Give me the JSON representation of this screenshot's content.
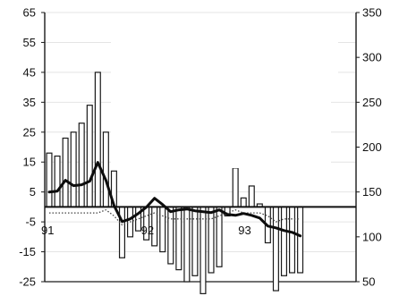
{
  "chart_data": {
    "type": "bar",
    "left_axis": {
      "range": [
        -25,
        65
      ],
      "ticks": [
        "65",
        "55",
        "45",
        "35",
        "25",
        "15",
        "5",
        "-5",
        "-15",
        "-25"
      ]
    },
    "right_axis": {
      "range": [
        50,
        350
      ],
      "ticks": [
        "350",
        "300",
        "250",
        "200",
        "150",
        "100",
        "50"
      ]
    },
    "year_labels": [
      {
        "text": "91",
        "index": 0
      },
      {
        "text": "92",
        "index": 12
      },
      {
        "text": "93",
        "index": 24
      }
    ],
    "series": [
      {
        "type": "bar",
        "axis": "left",
        "values": [
          18,
          17,
          23,
          25,
          28,
          34,
          45,
          25,
          12,
          -17,
          -10,
          -8,
          -11,
          -13,
          -15,
          -19,
          -21,
          -25,
          -23,
          -29,
          -22,
          -20,
          -3,
          13,
          3,
          7,
          1,
          -12,
          -28,
          -23,
          -22,
          -22
        ]
      },
      {
        "type": "line",
        "axis": "right",
        "style": "solid",
        "values": [
          150,
          151,
          163,
          157,
          158,
          162,
          183,
          163,
          135,
          117,
          120,
          126,
          133,
          143,
          136,
          128,
          130,
          131,
          129,
          128,
          127,
          130,
          125,
          124,
          126,
          124,
          121,
          112,
          110,
          107,
          105,
          101
        ]
      },
      {
        "type": "line",
        "axis": "left",
        "style": "dotted",
        "values": [
          -2,
          -2,
          -2,
          -2,
          -2,
          -2,
          -2,
          -1,
          -3,
          -6,
          -5,
          -4,
          -3,
          -2,
          -3,
          -4,
          -4,
          -4,
          -4,
          -4,
          -4,
          -3,
          -2,
          -1,
          -2,
          -2,
          -2,
          -3,
          -5,
          -4,
          -4,
          -4
        ]
      }
    ],
    "overlay_color": "#ffffff",
    "bar_fill": "#ffffff",
    "bar_stroke": "#1a1a1a",
    "line_color": "#0d0d0d"
  }
}
